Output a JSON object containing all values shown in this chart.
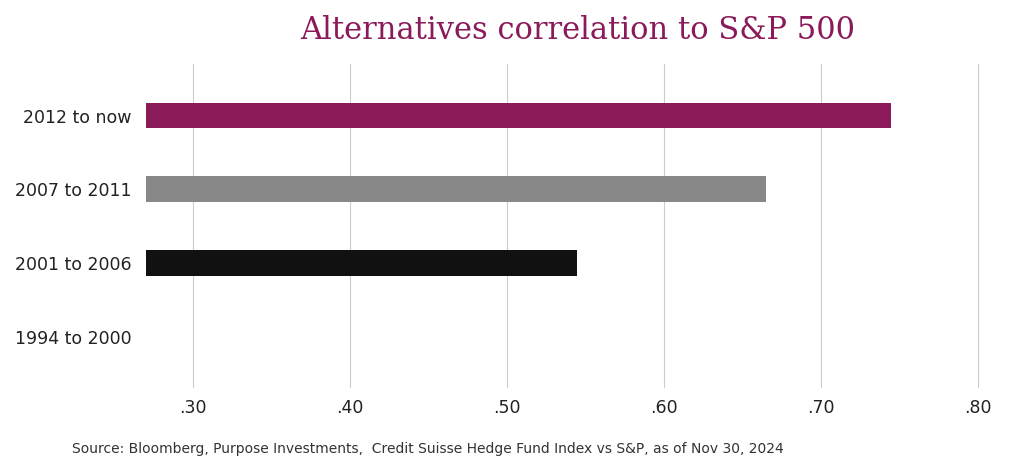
{
  "title_text": "Alternatives correlation to S&P 500",
  "categories": [
    "2012 to now",
    "2007 to 2011",
    "2001 to 2006",
    "1994 to 2000"
  ],
  "values": [
    0.745,
    0.665,
    0.545,
    0.0
  ],
  "bar_colors": [
    "#8B1A5A",
    "#888888",
    "#111111",
    "#ffffff"
  ],
  "has_bar": [
    true,
    true,
    true,
    false
  ],
  "xlim": [
    0.27,
    0.82
  ],
  "xticks": [
    0.3,
    0.4,
    0.5,
    0.6,
    0.7,
    0.8
  ],
  "xticklabels": [
    ".30",
    ".40",
    ".50",
    ".60",
    ".70",
    ".80"
  ],
  "title_color": "#8B1A5A",
  "title_fontsize": 22,
  "label_fontsize": 12.5,
  "tick_fontsize": 12.5,
  "source_text": "Source: Bloomberg, Purpose Investments,  Credit Suisse Hedge Fund Index vs S&P, as of Nov 30, 2024",
  "source_fontsize": 10,
  "background_color": "#ffffff",
  "bar_height": 0.35,
  "grid_color": "#cccccc"
}
